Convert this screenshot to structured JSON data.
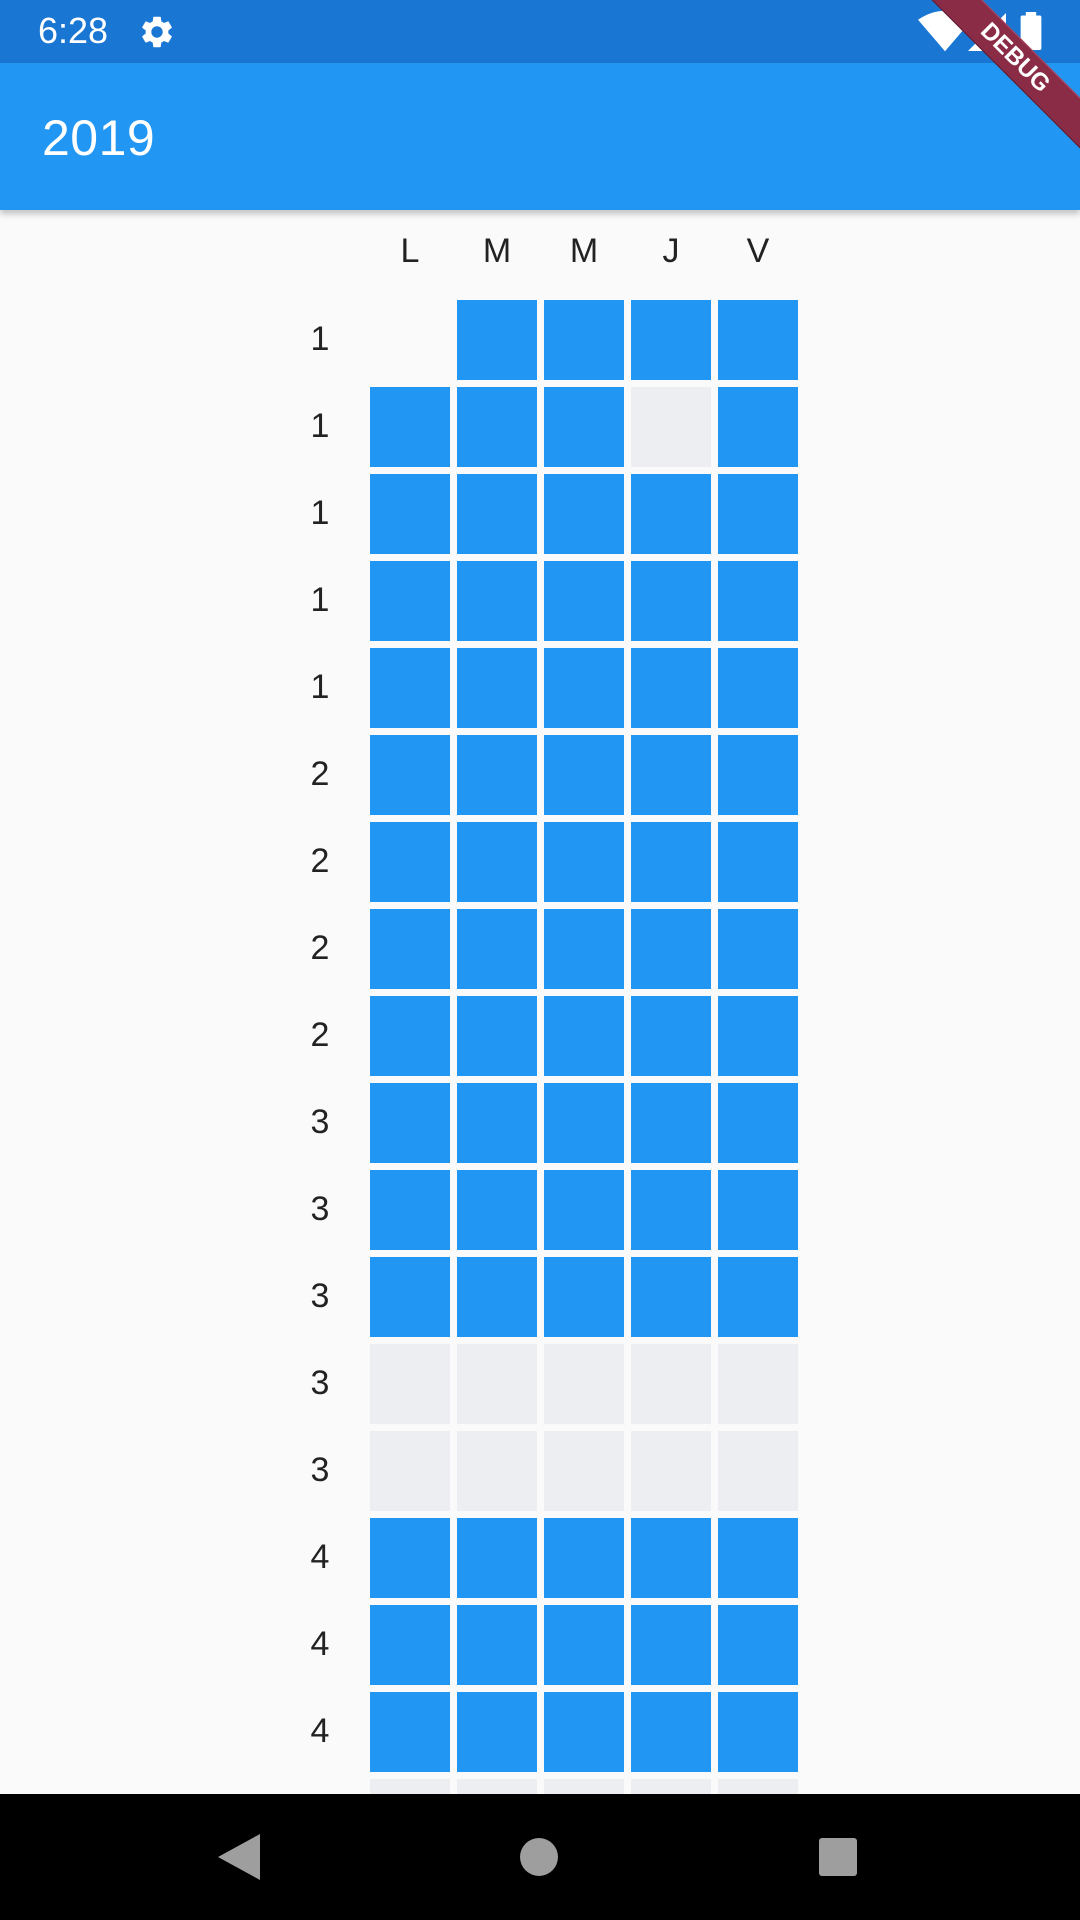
{
  "status_bar": {
    "time": "6:28",
    "icons": [
      "gear-icon",
      "wifi-icon",
      "signal-icon",
      "battery-icon"
    ]
  },
  "app_bar": {
    "title": "2019"
  },
  "debug_banner": {
    "label": "DEBUG"
  },
  "colors": {
    "primary": "#2196f3",
    "status_bar": "#1976d2",
    "empty_cell": "#eceef1",
    "debug": "#8b2c46"
  },
  "grid": {
    "days": [
      "L",
      "M",
      "M",
      "J",
      "V"
    ],
    "rows": [
      {
        "label": "1",
        "cells": [
          "none",
          "on",
          "on",
          "on",
          "on"
        ]
      },
      {
        "label": "1",
        "cells": [
          "on",
          "on",
          "on",
          "off",
          "on"
        ]
      },
      {
        "label": "1",
        "cells": [
          "on",
          "on",
          "on",
          "on",
          "on"
        ]
      },
      {
        "label": "1",
        "cells": [
          "on",
          "on",
          "on",
          "on",
          "on"
        ]
      },
      {
        "label": "1",
        "cells": [
          "on",
          "on",
          "on",
          "on",
          "on"
        ]
      },
      {
        "label": "2",
        "cells": [
          "on",
          "on",
          "on",
          "on",
          "on"
        ]
      },
      {
        "label": "2",
        "cells": [
          "on",
          "on",
          "on",
          "on",
          "on"
        ]
      },
      {
        "label": "2",
        "cells": [
          "on",
          "on",
          "on",
          "on",
          "on"
        ]
      },
      {
        "label": "2",
        "cells": [
          "on",
          "on",
          "on",
          "on",
          "on"
        ]
      },
      {
        "label": "3",
        "cells": [
          "on",
          "on",
          "on",
          "on",
          "on"
        ]
      },
      {
        "label": "3",
        "cells": [
          "on",
          "on",
          "on",
          "on",
          "on"
        ]
      },
      {
        "label": "3",
        "cells": [
          "on",
          "on",
          "on",
          "on",
          "on"
        ]
      },
      {
        "label": "3",
        "cells": [
          "off",
          "off",
          "off",
          "off",
          "off"
        ]
      },
      {
        "label": "3",
        "cells": [
          "off",
          "off",
          "off",
          "off",
          "off"
        ]
      },
      {
        "label": "4",
        "cells": [
          "on",
          "on",
          "on",
          "on",
          "on"
        ]
      },
      {
        "label": "4",
        "cells": [
          "on",
          "on",
          "on",
          "on",
          "on"
        ]
      },
      {
        "label": "4",
        "cells": [
          "on",
          "on",
          "on",
          "on",
          "on"
        ]
      },
      {
        "label": "",
        "cells": [
          "off",
          "off",
          "off",
          "off",
          "off"
        ]
      }
    ]
  },
  "nav_bar": {
    "icons": [
      "back-icon",
      "home-icon",
      "recents-icon"
    ]
  }
}
